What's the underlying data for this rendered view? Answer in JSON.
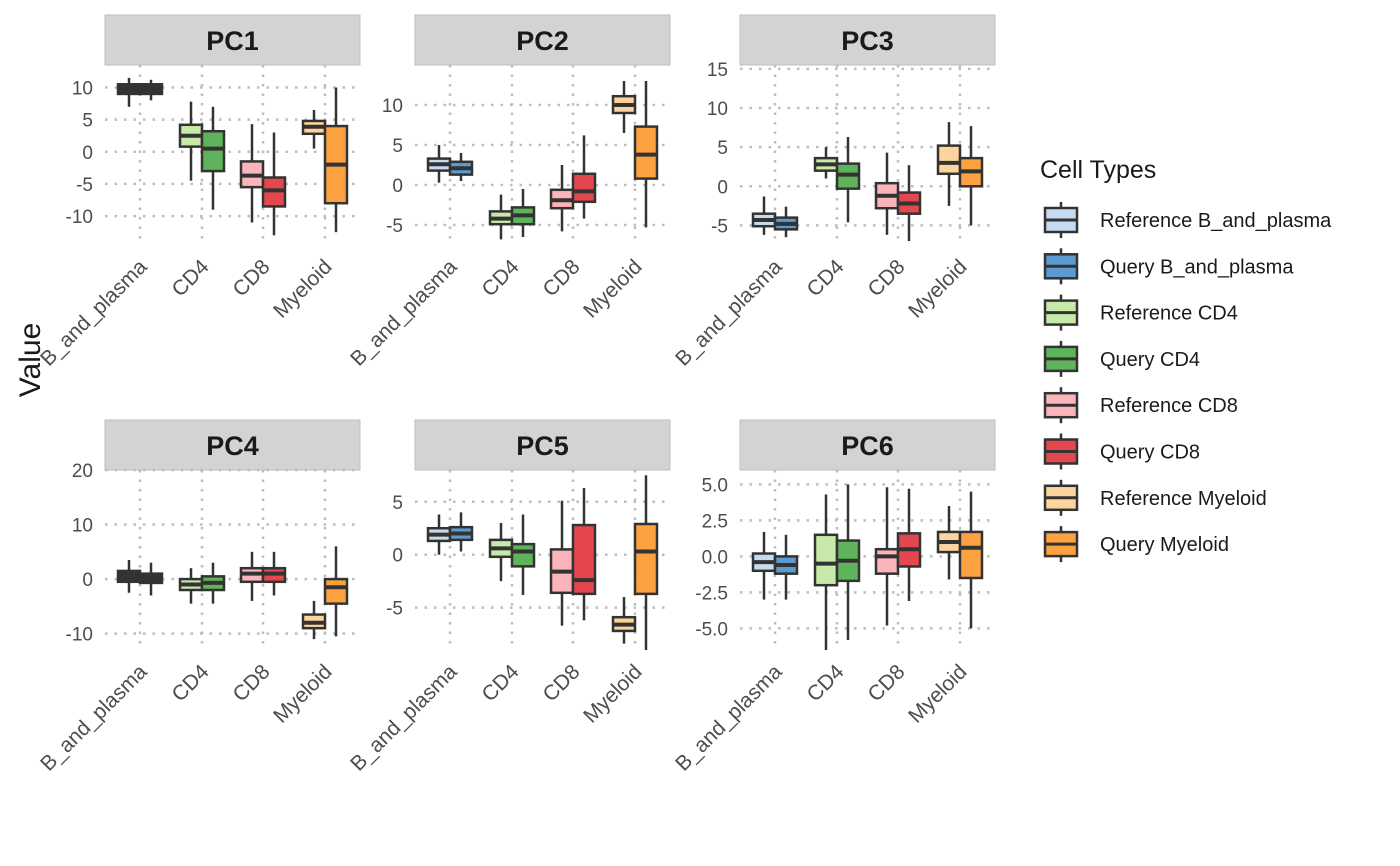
{
  "chart_data": {
    "type": "boxplot",
    "ylabel": "Value",
    "xlabel": "",
    "categories": [
      "B_and_plasma",
      "CD4",
      "CD8",
      "Myeloid"
    ],
    "legend": {
      "title": "Cell Types",
      "position": "right",
      "entries": [
        "Reference B_and_plasma",
        "Query B_and_plasma",
        "Reference CD4",
        "Query CD4",
        "Reference CD8",
        "Query CD8",
        "Reference Myeloid",
        "Query Myeloid"
      ]
    },
    "colors": {
      "Reference B_and_plasma": "#c6dbef",
      "Query B_and_plasma": "#5b9bd0",
      "Reference CD4": "#c7e9a9",
      "Query CD4": "#5fb35a",
      "Reference CD8": "#fbb4b9",
      "Query CD8": "#e5474f",
      "Reference Myeloid": "#fdd49e",
      "Query Myeloid": "#fda240",
      "dark": "#333333"
    },
    "grid": true,
    "panels": [
      {
        "title": "PC1",
        "ylim": [
          -14.5,
          13.5
        ],
        "yticks": [
          10,
          5,
          0,
          -5,
          -10
        ],
        "boxes": [
          {
            "category": "B_and_plasma",
            "group": "Reference",
            "min": 7,
            "q1": 9,
            "median": 9.5,
            "q3": 10.5,
            "max": 11.5,
            "color": "dark"
          },
          {
            "category": "B_and_plasma",
            "group": "Query",
            "min": 8,
            "q1": 9,
            "median": 9.8,
            "q3": 10.5,
            "max": 11.2,
            "color": "dark"
          },
          {
            "category": "CD4",
            "group": "Reference",
            "min": -4.5,
            "q1": 0.8,
            "median": 2.5,
            "q3": 4.2,
            "max": 7.8,
            "color": "Reference CD4"
          },
          {
            "category": "CD4",
            "group": "Query",
            "min": -9,
            "q1": -3,
            "median": 0.5,
            "q3": 3.2,
            "max": 7,
            "color": "Query CD4"
          },
          {
            "category": "CD8",
            "group": "Reference",
            "min": -11,
            "q1": -5.5,
            "median": -3.7,
            "q3": -1.5,
            "max": 4.3,
            "color": "Reference CD8"
          },
          {
            "category": "CD8",
            "group": "Query",
            "min": -13,
            "q1": -8.5,
            "median": -6,
            "q3": -4,
            "max": 3,
            "color": "Query CD8"
          },
          {
            "category": "Myeloid",
            "group": "Reference",
            "min": 0.5,
            "q1": 2.8,
            "median": 3.9,
            "q3": 4.8,
            "max": 6.5,
            "color": "Reference Myeloid"
          },
          {
            "category": "Myeloid",
            "group": "Query",
            "min": -12.5,
            "q1": -8,
            "median": -2,
            "q3": 4,
            "max": 10,
            "color": "Query Myeloid"
          }
        ]
      },
      {
        "title": "PC2",
        "ylim": [
          -7.5,
          15
        ],
        "yticks": [
          10,
          5,
          0,
          -5
        ],
        "boxes": [
          {
            "category": "B_and_plasma",
            "group": "Reference",
            "min": 0.3,
            "q1": 1.8,
            "median": 2.6,
            "q3": 3.3,
            "max": 5,
            "color": "Reference B_and_plasma"
          },
          {
            "category": "B_and_plasma",
            "group": "Query",
            "min": 0.5,
            "q1": 1.3,
            "median": 2.1,
            "q3": 2.9,
            "max": 4,
            "color": "Query B_and_plasma"
          },
          {
            "category": "CD4",
            "group": "Reference",
            "min": -6.8,
            "q1": -4.9,
            "median": -4.2,
            "q3": -3.3,
            "max": -1.2,
            "color": "Reference CD4"
          },
          {
            "category": "CD4",
            "group": "Query",
            "min": -6.5,
            "q1": -4.9,
            "median": -3.8,
            "q3": -2.8,
            "max": -0.5,
            "color": "Query CD4"
          },
          {
            "category": "CD8",
            "group": "Reference",
            "min": -5.8,
            "q1": -2.9,
            "median": -1.9,
            "q3": -0.6,
            "max": 2.5,
            "color": "Reference CD8"
          },
          {
            "category": "CD8",
            "group": "Query",
            "min": -4.2,
            "q1": -2.1,
            "median": -0.8,
            "q3": 1.4,
            "max": 6.2,
            "color": "Query CD8"
          },
          {
            "category": "Myeloid",
            "group": "Reference",
            "min": 6.5,
            "q1": 9,
            "median": 10,
            "q3": 11.1,
            "max": 13,
            "color": "Reference Myeloid"
          },
          {
            "category": "Myeloid",
            "group": "Query",
            "min": -5.3,
            "q1": 0.8,
            "median": 3.8,
            "q3": 7.3,
            "max": 13,
            "color": "Query Myeloid"
          }
        ]
      },
      {
        "title": "PC3",
        "ylim": [
          -7.5,
          15.5
        ],
        "yticks": [
          15,
          10,
          5,
          0,
          -5
        ],
        "boxes": [
          {
            "category": "B_and_plasma",
            "group": "Reference",
            "min": -6.2,
            "q1": -5.1,
            "median": -4.3,
            "q3": -3.5,
            "max": -1.3,
            "color": "Reference B_and_plasma"
          },
          {
            "category": "B_and_plasma",
            "group": "Query",
            "min": -6.5,
            "q1": -5.5,
            "median": -4.8,
            "q3": -4,
            "max": -2.6,
            "color": "Query B_and_plasma"
          },
          {
            "category": "CD4",
            "group": "Reference",
            "min": 1,
            "q1": 2,
            "median": 2.8,
            "q3": 3.6,
            "max": 5,
            "color": "Reference CD4"
          },
          {
            "category": "CD4",
            "group": "Query",
            "min": -4.6,
            "q1": -0.3,
            "median": 1.5,
            "q3": 2.9,
            "max": 6.3,
            "color": "Query CD4"
          },
          {
            "category": "CD8",
            "group": "Reference",
            "min": -6.2,
            "q1": -2.8,
            "median": -1.2,
            "q3": 0.4,
            "max": 4.3,
            "color": "Reference CD8"
          },
          {
            "category": "CD8",
            "group": "Query",
            "min": -7,
            "q1": -3.5,
            "median": -2.2,
            "q3": -0.8,
            "max": 2.7,
            "color": "Query CD8"
          },
          {
            "category": "Myeloid",
            "group": "Reference",
            "min": -2.5,
            "q1": 1.6,
            "median": 3,
            "q3": 5.2,
            "max": 8.2,
            "color": "Reference Myeloid"
          },
          {
            "category": "Myeloid",
            "group": "Query",
            "min": -5,
            "q1": 0,
            "median": 1.9,
            "q3": 3.6,
            "max": 7.7,
            "color": "Query Myeloid"
          }
        ]
      },
      {
        "title": "PC4",
        "ylim": [
          -13,
          20
        ],
        "yticks": [
          20,
          10,
          0,
          -10
        ],
        "boxes": [
          {
            "category": "B_and_plasma",
            "group": "Reference",
            "min": -2.5,
            "q1": -0.5,
            "median": 0.5,
            "q3": 1.5,
            "max": 3.5,
            "color": "dark"
          },
          {
            "category": "B_and_plasma",
            "group": "Query",
            "min": -3,
            "q1": -0.7,
            "median": 0.2,
            "q3": 1,
            "max": 3,
            "color": "dark"
          },
          {
            "category": "CD4",
            "group": "Reference",
            "min": -4.5,
            "q1": -2,
            "median": -1,
            "q3": 0,
            "max": 2,
            "color": "Reference CD4"
          },
          {
            "category": "CD4",
            "group": "Query",
            "min": -4.5,
            "q1": -2,
            "median": -0.7,
            "q3": 0.5,
            "max": 3,
            "color": "Query CD4"
          },
          {
            "category": "CD8",
            "group": "Reference",
            "min": -4,
            "q1": -0.5,
            "median": 1,
            "q3": 2,
            "max": 5,
            "color": "Reference CD8"
          },
          {
            "category": "CD8",
            "group": "Query",
            "min": -3,
            "q1": -0.5,
            "median": 1,
            "q3": 2,
            "max": 5,
            "color": "Query CD8"
          },
          {
            "category": "Myeloid",
            "group": "Reference",
            "min": -11,
            "q1": -9,
            "median": -8,
            "q3": -6.5,
            "max": -4,
            "color": "Reference Myeloid"
          },
          {
            "category": "Myeloid",
            "group": "Query",
            "min": -10.5,
            "q1": -4.5,
            "median": -1.5,
            "q3": 0,
            "max": 6,
            "color": "Query Myeloid"
          }
        ]
      },
      {
        "title": "PC5",
        "ylim": [
          -9,
          8
        ],
        "yticks": [
          5,
          0,
          -5
        ],
        "boxes": [
          {
            "category": "B_and_plasma",
            "group": "Reference",
            "min": 0,
            "q1": 1.3,
            "median": 1.9,
            "q3": 2.5,
            "max": 3.8,
            "color": "Reference B_and_plasma"
          },
          {
            "category": "B_and_plasma",
            "group": "Query",
            "min": 0.3,
            "q1": 1.4,
            "median": 2,
            "q3": 2.6,
            "max": 4,
            "color": "Query B_and_plasma"
          },
          {
            "category": "CD4",
            "group": "Reference",
            "min": -2.5,
            "q1": -0.2,
            "median": 0.6,
            "q3": 1.4,
            "max": 3,
            "color": "Reference CD4"
          },
          {
            "category": "CD4",
            "group": "Query",
            "min": -3.8,
            "q1": -1.1,
            "median": 0.3,
            "q3": 1,
            "max": 3.8,
            "color": "Query CD4"
          },
          {
            "category": "CD8",
            "group": "Reference",
            "min": -6.7,
            "q1": -3.6,
            "median": -1.6,
            "q3": 0.5,
            "max": 5.1,
            "color": "Reference CD8"
          },
          {
            "category": "CD8",
            "group": "Query",
            "min": -6.2,
            "q1": -3.7,
            "median": -2.4,
            "q3": 2.8,
            "max": 6.3,
            "color": "Query CD8"
          },
          {
            "category": "Myeloid",
            "group": "Reference",
            "min": -8.4,
            "q1": -7.2,
            "median": -6.6,
            "q3": -5.9,
            "max": -4,
            "color": "Reference Myeloid"
          },
          {
            "category": "Myeloid",
            "group": "Query",
            "min": -9,
            "q1": -3.7,
            "median": 0.3,
            "q3": 2.9,
            "max": 7.5,
            "color": "Query Myeloid"
          }
        ]
      },
      {
        "title": "PC6",
        "ylim": [
          -6.5,
          6
        ],
        "yticks": [
          5.0,
          2.5,
          0.0,
          -2.5,
          -5.0
        ],
        "yticklabels": [
          "5.0",
          "2.5",
          "0.0",
          "-2.5",
          "-5.0"
        ],
        "boxes": [
          {
            "category": "B_and_plasma",
            "group": "Reference",
            "min": -3,
            "q1": -1,
            "median": -0.4,
            "q3": 0.2,
            "max": 1.7,
            "color": "Reference B_and_plasma"
          },
          {
            "category": "B_and_plasma",
            "group": "Query",
            "min": -3,
            "q1": -1.2,
            "median": -0.6,
            "q3": 0,
            "max": 1.5,
            "color": "Query B_and_plasma"
          },
          {
            "category": "CD4",
            "group": "Reference",
            "min": -6.5,
            "q1": -2,
            "median": -0.5,
            "q3": 1.5,
            "max": 4.3,
            "color": "Reference CD4"
          },
          {
            "category": "CD4",
            "group": "Query",
            "min": -5.8,
            "q1": -1.7,
            "median": -0.3,
            "q3": 1.1,
            "max": 5,
            "color": "Query CD4"
          },
          {
            "category": "CD8",
            "group": "Reference",
            "min": -4.8,
            "q1": -1.2,
            "median": 0,
            "q3": 0.5,
            "max": 4.8,
            "color": "Reference CD8"
          },
          {
            "category": "CD8",
            "group": "Query",
            "min": -3.1,
            "q1": -0.7,
            "median": 0.5,
            "q3": 1.6,
            "max": 4.7,
            "color": "Query CD8"
          },
          {
            "category": "Myeloid",
            "group": "Reference",
            "min": -1.6,
            "q1": 0.3,
            "median": 1,
            "q3": 1.7,
            "max": 3.5,
            "color": "Reference Myeloid"
          },
          {
            "category": "Myeloid",
            "group": "Query",
            "min": -5,
            "q1": -1.5,
            "median": 0.6,
            "q3": 1.7,
            "max": 4.5,
            "color": "Query Myeloid"
          }
        ]
      }
    ]
  }
}
